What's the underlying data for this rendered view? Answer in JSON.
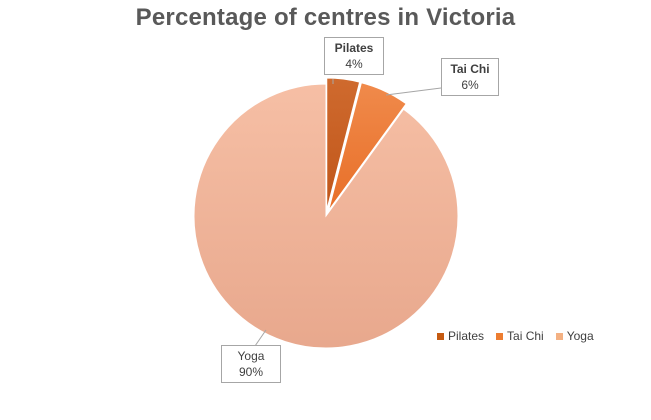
{
  "chart_data": {
    "type": "pie",
    "title": "Percentage of centres in Victoria",
    "categories": [
      "Pilates",
      "Tai Chi",
      "Yoga"
    ],
    "values": [
      4,
      6,
      90
    ],
    "labels": [
      "4%",
      "6%",
      "90%"
    ],
    "colors": [
      "#c55a11",
      "#ed7d31",
      "#f4b183"
    ],
    "legend": "bottom-right",
    "exploded_slices": [
      "Pilates",
      "Tai Chi"
    ]
  }
}
